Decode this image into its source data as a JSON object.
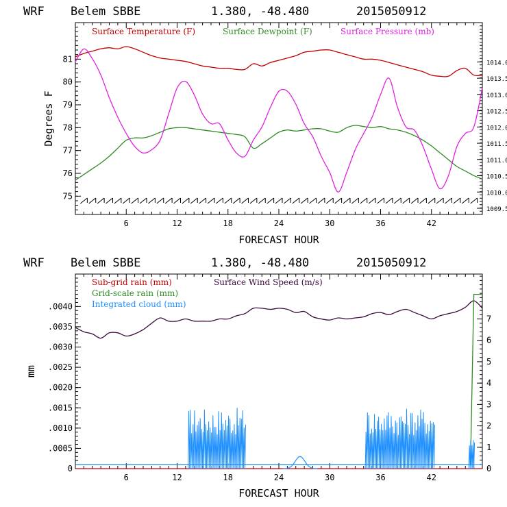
{
  "colors": {
    "temperature": "#c00000",
    "dewpoint": "#2e8b22",
    "pressure": "#e020e0",
    "wind": "#3a0a3a",
    "subgrid": "#c00000",
    "gridscale": "#2e8b22",
    "cloud": "#1e90ff"
  },
  "chart_data": [
    {
      "type": "line",
      "header": {
        "model": "WRF",
        "station": "Belem SBBE",
        "coords": "1.380, -48.480",
        "date": "2015050912"
      },
      "xlabel": "FORECAST HOUR",
      "ylabel": "Degrees F",
      "xlim": [
        0,
        48
      ],
      "ylim": [
        74.2,
        82.6
      ],
      "x_ticks": [
        "6",
        "12",
        "18",
        "24",
        "30",
        "36",
        "42"
      ],
      "x_tick_values": [
        6,
        12,
        18,
        24,
        30,
        36,
        42
      ],
      "y_ticks": [
        "75",
        "76",
        "77",
        "78",
        "79",
        "80",
        "81"
      ],
      "y_tick_values": [
        75,
        76,
        77,
        78,
        79,
        80,
        81
      ],
      "y2lim": [
        1009.31,
        1015.21
      ],
      "y2_ticks": [
        "1009.5",
        "1010.0",
        "1010.5",
        "1011.0",
        "1011.5",
        "1012.0",
        "1012.5",
        "1013.0",
        "1013.5",
        "1014.0"
      ],
      "y2_tick_values": [
        1009.5,
        1010.0,
        1010.5,
        1011.0,
        1011.5,
        1012.0,
        1012.5,
        1013.0,
        1013.5,
        1014.0
      ],
      "legend": [
        "Surface Temperature (F)",
        "Surface Dewpoint (F)",
        "Surface Pressure (mb)"
      ],
      "series": [
        {
          "name": "Surface Temperature (F)",
          "color_key": "temperature",
          "axis": "left",
          "x": [
            0,
            1,
            2,
            3,
            4,
            5,
            6,
            7,
            8,
            9,
            10,
            11,
            12,
            13,
            14,
            15,
            16,
            17,
            18,
            19,
            20,
            21,
            22,
            23,
            24,
            25,
            26,
            27,
            28,
            29,
            30,
            31,
            32,
            33,
            34,
            35,
            36,
            37,
            38,
            39,
            40,
            41,
            42,
            43,
            44,
            45,
            46,
            47,
            48
          ],
          "y": [
            81.1,
            81.25,
            81.35,
            81.45,
            81.5,
            81.45,
            81.55,
            81.45,
            81.3,
            81.15,
            81.05,
            81.0,
            80.95,
            80.9,
            80.8,
            80.7,
            80.65,
            80.6,
            80.6,
            80.55,
            80.55,
            80.8,
            80.7,
            80.85,
            80.95,
            81.05,
            81.15,
            81.3,
            81.35,
            81.4,
            81.4,
            81.3,
            81.2,
            81.1,
            81.0,
            81.0,
            80.95,
            80.85,
            80.75,
            80.65,
            80.55,
            80.45,
            80.3,
            80.25,
            80.25,
            80.5,
            80.6,
            80.3,
            80.3
          ]
        },
        {
          "name": "Surface Dewpoint (F)",
          "color_key": "dewpoint",
          "axis": "left",
          "x": [
            0,
            1,
            2,
            3,
            4,
            5,
            6,
            7,
            8,
            9,
            10,
            11,
            12,
            13,
            14,
            15,
            16,
            17,
            18,
            19,
            20,
            21,
            22,
            23,
            24,
            25,
            26,
            27,
            28,
            29,
            30,
            31,
            32,
            33,
            34,
            35,
            36,
            37,
            38,
            39,
            40,
            41,
            42,
            43,
            44,
            45,
            46,
            47,
            48
          ],
          "y": [
            75.7,
            75.95,
            76.2,
            76.45,
            76.75,
            77.1,
            77.45,
            77.55,
            77.55,
            77.65,
            77.8,
            77.95,
            78.0,
            78.0,
            77.95,
            77.9,
            77.85,
            77.8,
            77.75,
            77.7,
            77.6,
            77.1,
            77.3,
            77.55,
            77.8,
            77.9,
            77.85,
            77.9,
            77.95,
            77.95,
            77.85,
            77.8,
            78.0,
            78.1,
            78.05,
            78.0,
            78.05,
            77.95,
            77.9,
            77.8,
            77.65,
            77.45,
            77.2,
            76.9,
            76.6,
            76.3,
            76.1,
            75.9,
            75.75
          ]
        },
        {
          "name": "Surface Pressure (mb)",
          "color_key": "pressure",
          "axis": "right",
          "x": [
            0,
            1,
            2,
            3,
            4,
            5,
            6,
            7,
            8,
            9,
            10,
            11,
            12,
            13,
            14,
            15,
            16,
            17,
            18,
            19,
            20,
            21,
            22,
            23,
            24,
            25,
            26,
            27,
            28,
            29,
            30,
            31,
            32,
            33,
            34,
            35,
            36,
            37,
            38,
            39,
            40,
            41,
            42,
            43,
            44,
            45,
            46,
            47,
            48
          ],
          "y": [
            1014.0,
            1014.4,
            1014.1,
            1013.6,
            1012.9,
            1012.3,
            1011.8,
            1011.4,
            1011.2,
            1011.3,
            1011.6,
            1012.4,
            1013.2,
            1013.4,
            1013.0,
            1012.4,
            1012.1,
            1012.1,
            1011.6,
            1011.2,
            1011.1,
            1011.6,
            1012.0,
            1012.6,
            1013.1,
            1013.1,
            1012.7,
            1012.1,
            1011.7,
            1011.1,
            1010.6,
            1010.0,
            1010.6,
            1011.3,
            1011.8,
            1012.3,
            1013.0,
            1013.5,
            1012.6,
            1012.0,
            1011.9,
            1011.4,
            1010.7,
            1010.1,
            1010.5,
            1011.4,
            1011.8,
            1012.0,
            1013.2
          ]
        }
      ],
      "barbs_label": "wind barbs (no text)"
    },
    {
      "type": "line",
      "header": {
        "model": "WRF",
        "station": "Belem SBBE",
        "coords": "1.380, -48.480",
        "date": "2015050912"
      },
      "xlabel": "FORECAST HOUR",
      "ylabel": "mm",
      "xlim": [
        0,
        48
      ],
      "ylim": [
        0,
        0.0048
      ],
      "x_ticks": [
        "6",
        "12",
        "18",
        "24",
        "30",
        "36",
        "42"
      ],
      "x_tick_values": [
        6,
        12,
        18,
        24,
        30,
        36,
        42
      ],
      "y_ticks": [
        "0",
        ".0005",
        ".0010",
        ".0015",
        ".0020",
        ".0025",
        ".0030",
        ".0035",
        ".0040"
      ],
      "y_tick_values": [
        0,
        0.0005,
        0.001,
        0.0015,
        0.002,
        0.0025,
        0.003,
        0.0035,
        0.004
      ],
      "y2lim": [
        0,
        9.1
      ],
      "y2_ticks": [
        "0",
        "1",
        "2",
        "3",
        "4",
        "5",
        "6",
        "7"
      ],
      "y2_tick_values": [
        0,
        1,
        2,
        3,
        4,
        5,
        6,
        7
      ],
      "legend": [
        "Sub-grid rain (mm)",
        "Grid-scale rain (mm)",
        "Integrated cloud (mm)",
        "Surface Wind Speed (m/s)"
      ],
      "series": [
        {
          "name": "Surface Wind Speed (m/s)",
          "color_key": "wind",
          "axis": "right",
          "x": [
            0,
            1,
            2,
            3,
            4,
            5,
            6,
            7,
            8,
            9,
            10,
            11,
            12,
            13,
            14,
            15,
            16,
            17,
            18,
            19,
            20,
            21,
            22,
            23,
            24,
            25,
            26,
            27,
            28,
            29,
            30,
            31,
            32,
            33,
            34,
            35,
            36,
            37,
            38,
            39,
            40,
            41,
            42,
            43,
            44,
            45,
            46,
            47,
            48
          ],
          "y": [
            6.6,
            6.4,
            6.3,
            6.1,
            6.35,
            6.35,
            6.2,
            6.3,
            6.5,
            6.8,
            7.05,
            6.9,
            6.9,
            7.0,
            6.9,
            6.9,
            6.9,
            7.0,
            7.0,
            7.15,
            7.25,
            7.5,
            7.5,
            7.45,
            7.5,
            7.45,
            7.3,
            7.35,
            7.1,
            7.0,
            6.95,
            7.05,
            7.0,
            7.05,
            7.1,
            7.25,
            7.3,
            7.2,
            7.35,
            7.45,
            7.3,
            7.15,
            7.0,
            7.15,
            7.25,
            7.35,
            7.55,
            7.85,
            7.5
          ]
        },
        {
          "name": "Grid-scale rain (mm)",
          "color_key": "gridscale",
          "axis": "left",
          "x": [
            0,
            46.6,
            47.0,
            47.5,
            48
          ],
          "y": [
            0.0001,
            0.0001,
            0.0043,
            0.0043,
            0.0043
          ]
        },
        {
          "name": "Sub-grid rain (mm)",
          "color_key": "subgrid",
          "axis": "left",
          "x": [
            0,
            48
          ],
          "y": [
            0,
            0
          ]
        },
        {
          "name": "Integrated cloud (mm)",
          "color_key": "cloud",
          "axis": "left",
          "bursts": [
            {
              "x_start": 13.3,
              "x_end": 20.0,
              "peak": 0.0015
            },
            {
              "x_start": 34.2,
              "x_end": 42.3,
              "peak": 0.0015
            },
            {
              "x_start": 46.4,
              "x_end": 47.0,
              "peak": 0.0008
            }
          ],
          "bumps": [
            {
              "x_center": 26.5,
              "peak": 0.0003
            }
          ]
        }
      ]
    }
  ]
}
